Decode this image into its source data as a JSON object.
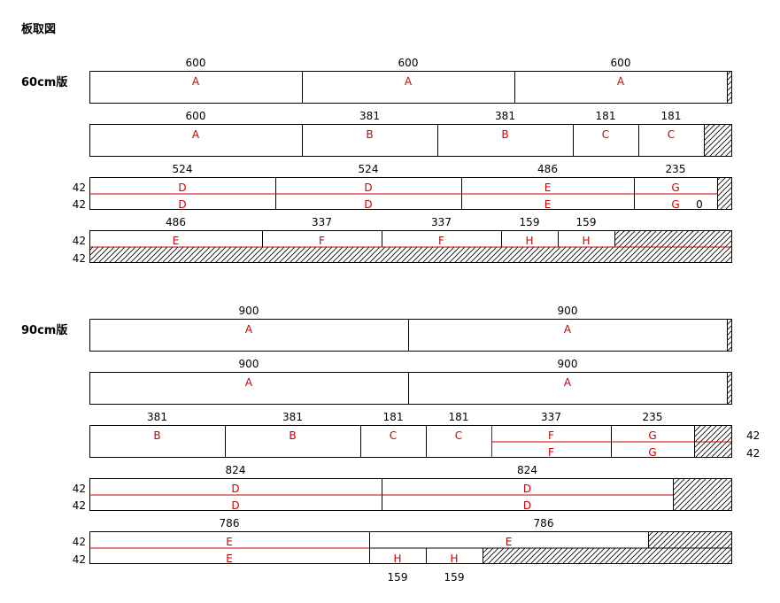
{
  "title": "板取図",
  "colors": {
    "outline": "#000000",
    "cut": "#cc0000",
    "label": "#cc0000",
    "waste": "#000000"
  },
  "sections": [
    {
      "name": "60cm版",
      "boards": [
        {
          "layout": "single",
          "pieces": [
            {
              "label": "A",
              "dim": "600"
            },
            {
              "label": "A",
              "dim": "600"
            },
            {
              "label": "A",
              "dim": "600"
            }
          ]
        },
        {
          "layout": "single",
          "pieces": [
            {
              "label": "A",
              "dim": "600"
            },
            {
              "label": "B",
              "dim": "381"
            },
            {
              "label": "B",
              "dim": "381"
            },
            {
              "label": "C",
              "dim": "181"
            },
            {
              "label": "C",
              "dim": "181"
            }
          ]
        },
        {
          "layout": "double",
          "left_labels": [
            "42",
            "42"
          ],
          "pieces": [
            {
              "label": "D",
              "label2": "D",
              "dim": "524"
            },
            {
              "label": "D",
              "label2": "D",
              "dim": "524"
            },
            {
              "label": "E",
              "label2": "E",
              "dim": "486"
            },
            {
              "label": "G",
              "label2": "G",
              "dim": "235"
            }
          ],
          "note": "0"
        },
        {
          "layout": "top-row",
          "left_labels": [
            "42",
            "42"
          ],
          "pieces": [
            {
              "label": "E",
              "dim": "486"
            },
            {
              "label": "F",
              "dim": "337"
            },
            {
              "label": "F",
              "dim": "337"
            },
            {
              "label": "H",
              "dim": "159"
            },
            {
              "label": "H",
              "dim": "159"
            }
          ]
        }
      ]
    },
    {
      "name": "90cm版",
      "boards": [
        {
          "layout": "single",
          "pieces": [
            {
              "label": "A",
              "dim": "900"
            },
            {
              "label": "A",
              "dim": "900"
            }
          ]
        },
        {
          "layout": "single",
          "pieces": [
            {
              "label": "A",
              "dim": "900"
            },
            {
              "label": "A",
              "dim": "900"
            }
          ]
        },
        {
          "layout": "mixed",
          "right_labels": [
            "42",
            "42"
          ],
          "pieces": [
            {
              "label": "B",
              "dim": "381"
            },
            {
              "label": "B",
              "dim": "381"
            },
            {
              "label": "C",
              "dim": "181"
            },
            {
              "label": "C",
              "dim": "181"
            },
            {
              "label": "F",
              "label2": "F",
              "dim": "337"
            },
            {
              "label": "G",
              "label2": "G",
              "dim": "235"
            }
          ]
        },
        {
          "layout": "double",
          "left_labels": [
            "42",
            "42"
          ],
          "pieces": [
            {
              "label": "D",
              "label2": "D",
              "dim": "824"
            },
            {
              "label": "D",
              "label2": "D",
              "dim": "824"
            }
          ]
        },
        {
          "layout": "stagger",
          "left_labels": [
            "42",
            "42"
          ],
          "pieces": [
            {
              "label": "E",
              "label2": "E",
              "dim": "786"
            },
            {
              "label": "E",
              "dim": "786"
            },
            {
              "label": "H",
              "dim": "159"
            },
            {
              "label": "H",
              "dim": "159"
            }
          ]
        }
      ]
    }
  ]
}
